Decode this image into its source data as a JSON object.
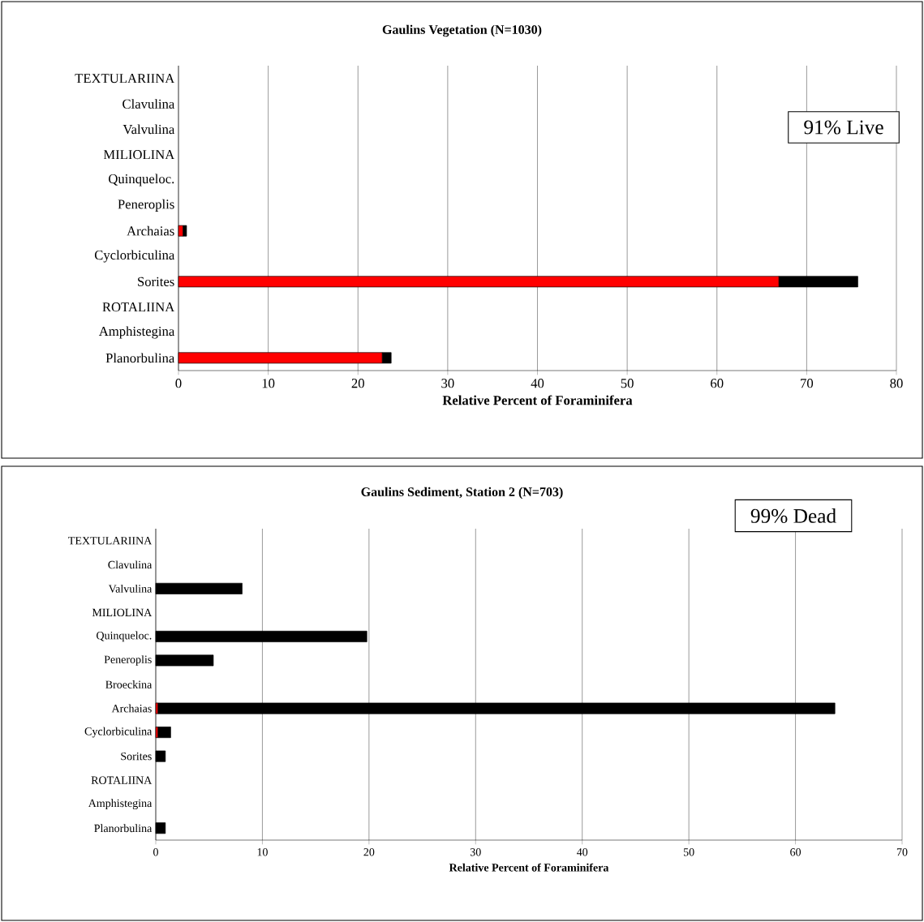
{
  "chart_data": [
    {
      "type": "bar",
      "orientation": "horizontal",
      "stacked": true,
      "title": "Gaulins Vegetation (N=1030)",
      "xlabel": "Relative Percent of Foraminifera",
      "categories": [
        "TEXTULARIINA",
        "Clavulina",
        "Valvulina",
        "MILIOLINA",
        "Quinqueloc.",
        "Peneroplis",
        "Archaias",
        "Cyclorbiculina",
        "Sorites",
        "ROTALIINA",
        "Amphistegina",
        "Planorbulina"
      ],
      "series": [
        {
          "color": "#ff0000",
          "values": [
            null,
            null,
            null,
            null,
            null,
            null,
            0.5,
            null,
            66.9,
            null,
            null,
            22.7
          ]
        },
        {
          "color": "#000000",
          "values": [
            null,
            null,
            null,
            null,
            null,
            null,
            0.4,
            null,
            8.8,
            null,
            null,
            1.0
          ]
        }
      ],
      "xlim": [
        0,
        80
      ],
      "xticks": [
        0,
        10,
        20,
        30,
        40,
        50,
        60,
        70,
        80
      ],
      "grid": "x",
      "annotations": [
        "91% Live"
      ]
    },
    {
      "type": "bar",
      "orientation": "horizontal",
      "stacked": true,
      "title": "Gaulins Sediment, Station 2 (N=703)",
      "xlabel": "Relative Percent of Foraminifera",
      "categories": [
        "TEXTULARIINA",
        "Clavulina",
        "Valvulina",
        "MILIOLINA",
        "Quinqueloc.",
        "Peneroplis",
        "Broeckina",
        "Archaias",
        "Cyclorbiculina",
        "Sorites",
        "ROTALIINA",
        "Amphistegina",
        "Planorbulina"
      ],
      "series": [
        {
          "color": "#ff0000",
          "values": [
            null,
            null,
            null,
            null,
            null,
            null,
            null,
            0.2,
            0.2,
            null,
            null,
            null,
            null
          ]
        },
        {
          "color": "#000000",
          "values": [
            null,
            null,
            8.1,
            null,
            19.8,
            5.4,
            null,
            63.5,
            1.2,
            0.9,
            null,
            null,
            0.9
          ]
        }
      ],
      "xlim": [
        0,
        70
      ],
      "xticks": [
        0,
        10,
        20,
        30,
        40,
        50,
        60,
        70
      ],
      "grid": "x",
      "annotations": [
        "99% Dead"
      ]
    }
  ]
}
